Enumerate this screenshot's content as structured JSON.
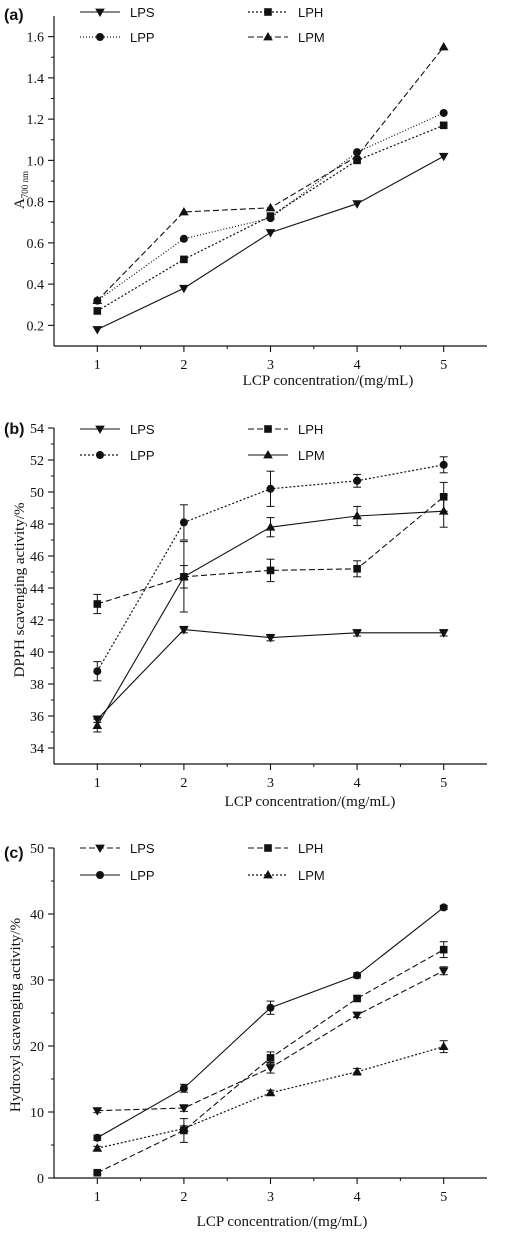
{
  "chart_data": [
    {
      "type": "line",
      "panel_label": "(a)",
      "xlabel": "LCP concentration/(mg/mL)",
      "ylabel": "A",
      "ylabel_sub": "700 nm",
      "x": [
        1,
        2,
        3,
        4,
        5
      ],
      "xlim": [
        0.5,
        5.5
      ],
      "ylim": [
        0.1,
        1.7
      ],
      "yticks": [
        0.2,
        0.4,
        0.6,
        0.8,
        1.0,
        1.2,
        1.4,
        1.6
      ],
      "ytick_labels": [
        "0.2",
        "0.4",
        "0.6",
        "0.8",
        "1.0",
        "1.2",
        "1.4",
        "1.6"
      ],
      "legend_position": "top-left",
      "series": [
        {
          "name": "LPS",
          "marker": "triangle-down",
          "values": [
            0.18,
            0.38,
            0.65,
            0.79,
            1.02
          ]
        },
        {
          "name": "LPH",
          "marker": "square",
          "values": [
            0.27,
            0.52,
            0.73,
            1.0,
            1.17
          ]
        },
        {
          "name": "LPP",
          "marker": "circle",
          "values": [
            0.32,
            0.62,
            0.72,
            1.04,
            1.23
          ]
        },
        {
          "name": "LPM",
          "marker": "triangle-up",
          "values": [
            0.32,
            0.75,
            0.77,
            1.02,
            1.55
          ]
        }
      ]
    },
    {
      "type": "line",
      "panel_label": "(b)",
      "xlabel": "LCP concentration/(mg/mL)",
      "ylabel": "DPPH scavenging activity/%",
      "ylabel_sub": "",
      "x": [
        1,
        2,
        3,
        4,
        5
      ],
      "xlim": [
        0.5,
        5.5
      ],
      "ylim": [
        33,
        54
      ],
      "yticks": [
        34,
        36,
        38,
        40,
        42,
        44,
        46,
        48,
        50,
        52,
        54
      ],
      "ytick_labels": [
        "34",
        "36",
        "38",
        "40",
        "42",
        "44",
        "46",
        "48",
        "50",
        "52",
        "54"
      ],
      "legend_position": "top-left",
      "series": [
        {
          "name": "LPS",
          "marker": "triangle-down",
          "values": [
            35.8,
            41.4,
            40.9,
            41.2,
            41.2
          ],
          "errors": [
            0.2,
            0.2,
            0.2,
            0.2,
            0.2
          ]
        },
        {
          "name": "LPH",
          "marker": "square",
          "values": [
            43.0,
            44.7,
            45.1,
            45.2,
            49.7
          ],
          "errors": [
            0.6,
            0.7,
            0.7,
            0.5,
            0.9
          ]
        },
        {
          "name": "LPP",
          "marker": "circle",
          "values": [
            38.8,
            48.1,
            50.2,
            50.7,
            51.7
          ],
          "errors": [
            0.6,
            1.1,
            1.1,
            0.4,
            0.5
          ]
        },
        {
          "name": "LPM",
          "marker": "triangle-up",
          "values": [
            35.4,
            44.7,
            47.8,
            48.5,
            48.8
          ],
          "errors": [
            0.4,
            2.2,
            0.6,
            0.6,
            1.0
          ]
        }
      ]
    },
    {
      "type": "line",
      "panel_label": "(c)",
      "xlabel": "LCP concentration/(mg/mL)",
      "ylabel": "Hydroxyl scavenging activity/%",
      "ylabel_sub": "",
      "x": [
        1,
        2,
        3,
        4,
        5
      ],
      "xlim": [
        0.5,
        5.5
      ],
      "ylim": [
        0,
        50
      ],
      "yticks": [
        0,
        10,
        20,
        30,
        40,
        50
      ],
      "ytick_labels": [
        "0",
        "10",
        "20",
        "30",
        "40",
        "50"
      ],
      "legend_position": "top-left",
      "series": [
        {
          "name": "LPS",
          "marker": "triangle-down",
          "values": [
            10.2,
            10.6,
            16.7,
            24.7,
            31.4
          ],
          "errors": [
            0.3,
            0.5,
            0.8,
            0.4,
            0.6
          ]
        },
        {
          "name": "LPH",
          "marker": "square",
          "values": [
            0.8,
            7.2,
            18.2,
            27.2,
            34.6
          ],
          "errors": [
            0.2,
            1.8,
            0.9,
            0.4,
            1.2
          ]
        },
        {
          "name": "LPP",
          "marker": "circle",
          "values": [
            6.1,
            13.6,
            25.8,
            30.7,
            41.0
          ],
          "errors": [
            0.4,
            0.6,
            1.0,
            0.4,
            0.3
          ]
        },
        {
          "name": "LPM",
          "marker": "triangle-up",
          "values": [
            4.5,
            7.5,
            12.9,
            16.1,
            19.9
          ],
          "errors": [
            0.3,
            0.4,
            0.4,
            0.5,
            0.9
          ]
        }
      ]
    }
  ]
}
